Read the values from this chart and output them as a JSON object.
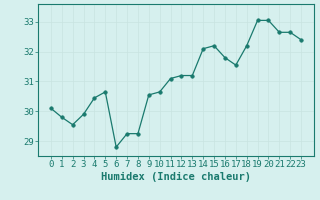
{
  "x": [
    0,
    1,
    2,
    3,
    4,
    5,
    6,
    7,
    8,
    9,
    10,
    11,
    12,
    13,
    14,
    15,
    16,
    17,
    18,
    19,
    20,
    21,
    22,
    23
  ],
  "y": [
    30.1,
    29.8,
    29.55,
    29.9,
    30.45,
    30.65,
    28.8,
    29.25,
    29.25,
    30.55,
    30.65,
    31.1,
    31.2,
    31.2,
    32.1,
    32.2,
    31.8,
    31.55,
    32.2,
    33.05,
    33.05,
    32.65,
    32.65,
    32.4
  ],
  "line_color": "#1a7a6e",
  "marker": "o",
  "marker_size": 2.5,
  "bg_color": "#d6f0ee",
  "grid_color": "#c8e4e0",
  "axis_color": "#1a7a6e",
  "xlabel": "Humidex (Indice chaleur)",
  "xlabel_fontsize": 7.5,
  "ylim": [
    28.5,
    33.6
  ],
  "yticks": [
    29,
    30,
    31,
    32,
    33
  ],
  "xticks": [
    0,
    1,
    2,
    3,
    4,
    5,
    6,
    7,
    8,
    9,
    10,
    11,
    12,
    13,
    14,
    15,
    16,
    17,
    18,
    19,
    20,
    21,
    22,
    23
  ],
  "tick_fontsize": 6.5
}
